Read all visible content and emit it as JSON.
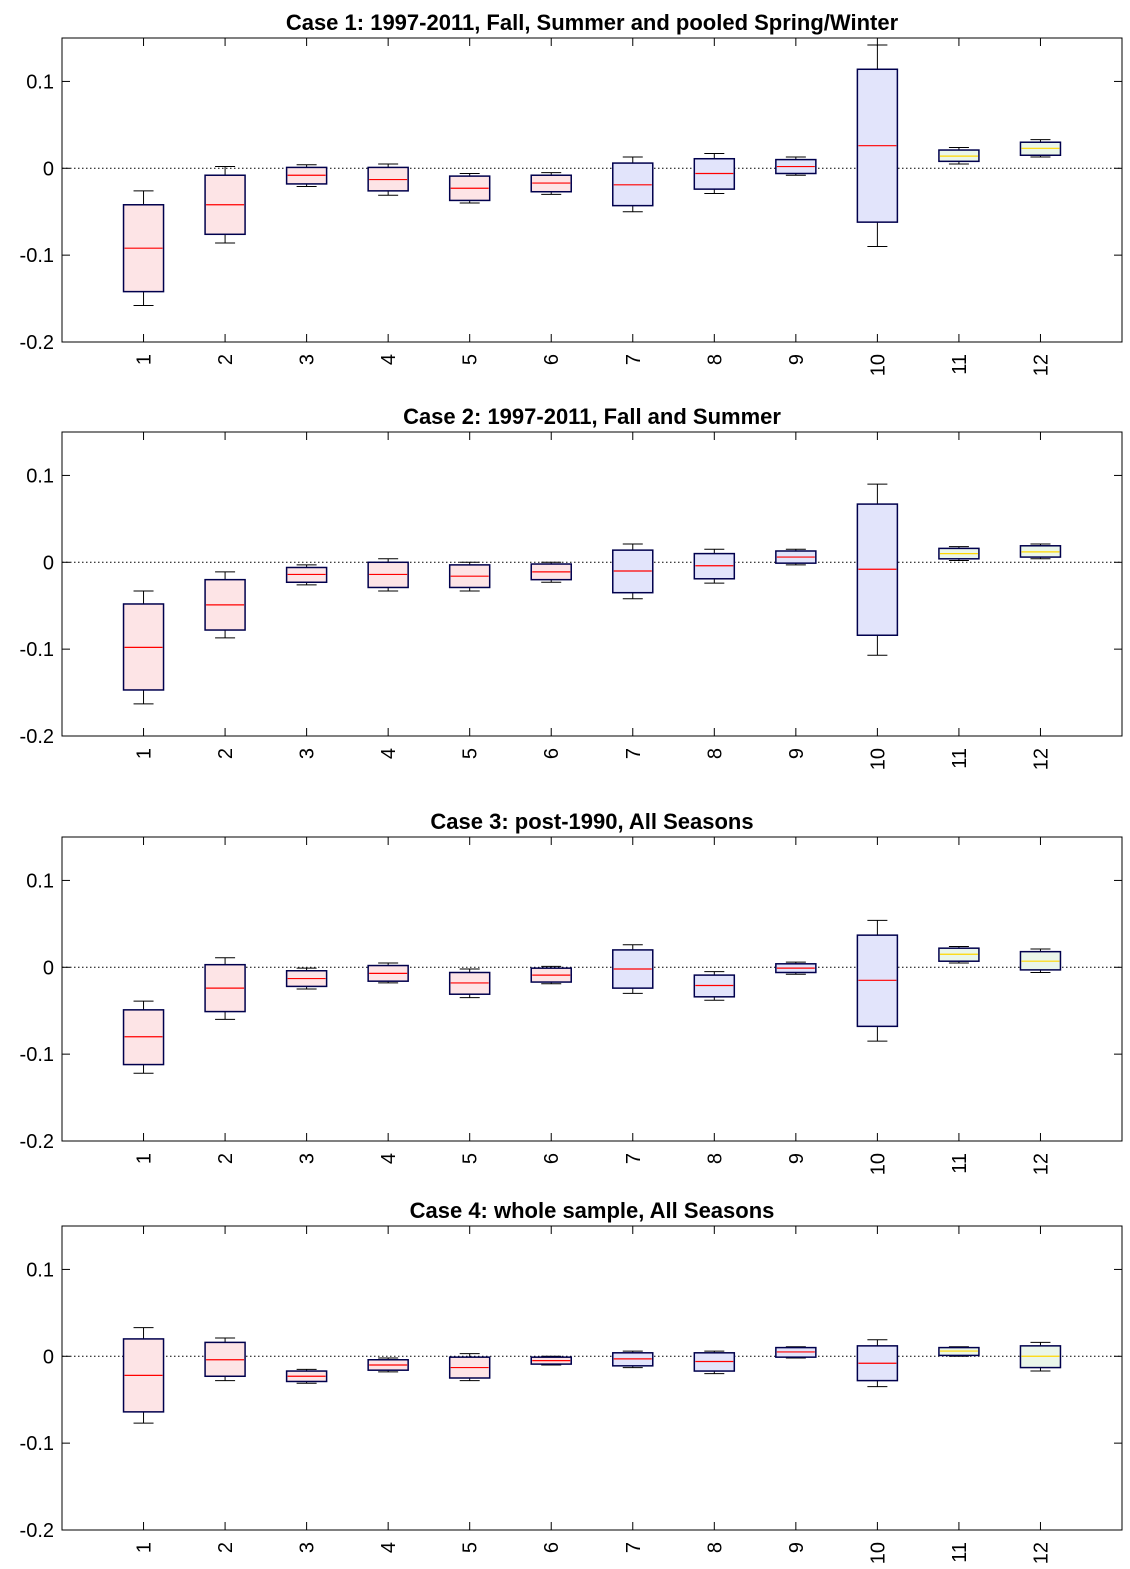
{
  "colors": {
    "red_box_fill": "#fde4e6",
    "blue_box_fill": "#e2e4fb",
    "green_box_fill": "#eaf6ea",
    "box_edge": "#00004d",
    "median": "#ff0000",
    "yellow_median": "#ffd700",
    "zero_line": "#000000"
  },
  "chart_data": [
    {
      "type": "box",
      "title": "Case 1: 1997-2011, Fall, Summer and pooled Spring/Winter",
      "ylim": [
        -0.2,
        0.15
      ],
      "yticks": [
        "0.1",
        "0",
        "-0.1",
        "-0.2"
      ],
      "categories": [
        "1",
        "2",
        "3",
        "4",
        "5",
        "6",
        "7",
        "8",
        "9",
        "10",
        "11",
        "12"
      ],
      "reference_line": 0,
      "boxes": [
        {
          "category": "1",
          "whisker_low": -0.158,
          "q1": -0.142,
          "median": -0.092,
          "q3": -0.042,
          "whisker_high": -0.026,
          "fill": "red"
        },
        {
          "category": "2",
          "whisker_low": -0.086,
          "q1": -0.076,
          "median": -0.042,
          "q3": -0.008,
          "whisker_high": 0.002,
          "fill": "red"
        },
        {
          "category": "3",
          "whisker_low": -0.021,
          "q1": -0.018,
          "median": -0.008,
          "q3": 0.001,
          "whisker_high": 0.004,
          "fill": "red"
        },
        {
          "category": "4",
          "whisker_low": -0.031,
          "q1": -0.026,
          "median": -0.013,
          "q3": 0.001,
          "whisker_high": 0.005,
          "fill": "red"
        },
        {
          "category": "5",
          "whisker_low": -0.04,
          "q1": -0.037,
          "median": -0.023,
          "q3": -0.009,
          "whisker_high": -0.006,
          "fill": "red"
        },
        {
          "category": "6",
          "whisker_low": -0.03,
          "q1": -0.027,
          "median": -0.017,
          "q3": -0.008,
          "whisker_high": -0.005,
          "fill": "red"
        },
        {
          "category": "7",
          "whisker_low": -0.05,
          "q1": -0.043,
          "median": -0.019,
          "q3": 0.006,
          "whisker_high": 0.013,
          "fill": "blue"
        },
        {
          "category": "8",
          "whisker_low": -0.029,
          "q1": -0.024,
          "median": -0.006,
          "q3": 0.011,
          "whisker_high": 0.017,
          "fill": "blue"
        },
        {
          "category": "9",
          "whisker_low": -0.008,
          "q1": -0.006,
          "median": 0.002,
          "q3": 0.01,
          "whisker_high": 0.013,
          "fill": "blue"
        },
        {
          "category": "10",
          "whisker_low": -0.09,
          "q1": -0.062,
          "median": 0.026,
          "q3": 0.114,
          "whisker_high": 0.142,
          "fill": "blue"
        },
        {
          "category": "11",
          "whisker_low": 0.005,
          "q1": 0.008,
          "median": 0.014,
          "q3": 0.021,
          "whisker_high": 0.024,
          "fill": "green"
        },
        {
          "category": "12",
          "whisker_low": 0.013,
          "q1": 0.015,
          "median": 0.023,
          "q3": 0.03,
          "whisker_high": 0.033,
          "fill": "green"
        }
      ]
    },
    {
      "type": "box",
      "title": "Case 2: 1997-2011, Fall and Summer",
      "ylim": [
        -0.2,
        0.15
      ],
      "yticks": [
        "0.1",
        "0",
        "-0.1",
        "-0.2"
      ],
      "categories": [
        "1",
        "2",
        "3",
        "4",
        "5",
        "6",
        "7",
        "8",
        "9",
        "10",
        "11",
        "12"
      ],
      "reference_line": 0,
      "boxes": [
        {
          "category": "1",
          "whisker_low": -0.163,
          "q1": -0.147,
          "median": -0.098,
          "q3": -0.048,
          "whisker_high": -0.033,
          "fill": "red"
        },
        {
          "category": "2",
          "whisker_low": -0.087,
          "q1": -0.078,
          "median": -0.049,
          "q3": -0.02,
          "whisker_high": -0.011,
          "fill": "red"
        },
        {
          "category": "3",
          "whisker_low": -0.026,
          "q1": -0.023,
          "median": -0.014,
          "q3": -0.006,
          "whisker_high": -0.003,
          "fill": "red"
        },
        {
          "category": "4",
          "whisker_low": -0.033,
          "q1": -0.029,
          "median": -0.014,
          "q3": 0.0,
          "whisker_high": 0.004,
          "fill": "red"
        },
        {
          "category": "5",
          "whisker_low": -0.033,
          "q1": -0.029,
          "median": -0.016,
          "q3": -0.003,
          "whisker_high": 0.0,
          "fill": "red"
        },
        {
          "category": "6",
          "whisker_low": -0.023,
          "q1": -0.02,
          "median": -0.011,
          "q3": -0.002,
          "whisker_high": 0.0,
          "fill": "red"
        },
        {
          "category": "7",
          "whisker_low": -0.042,
          "q1": -0.035,
          "median": -0.01,
          "q3": 0.014,
          "whisker_high": 0.021,
          "fill": "blue"
        },
        {
          "category": "8",
          "whisker_low": -0.024,
          "q1": -0.019,
          "median": -0.004,
          "q3": 0.01,
          "whisker_high": 0.015,
          "fill": "blue"
        },
        {
          "category": "9",
          "whisker_low": -0.003,
          "q1": -0.001,
          "median": 0.006,
          "q3": 0.013,
          "whisker_high": 0.015,
          "fill": "blue"
        },
        {
          "category": "10",
          "whisker_low": -0.107,
          "q1": -0.084,
          "median": -0.008,
          "q3": 0.067,
          "whisker_high": 0.09,
          "fill": "blue"
        },
        {
          "category": "11",
          "whisker_low": 0.002,
          "q1": 0.004,
          "median": 0.01,
          "q3": 0.016,
          "whisker_high": 0.018,
          "fill": "green"
        },
        {
          "category": "12",
          "whisker_low": 0.004,
          "q1": 0.006,
          "median": 0.012,
          "q3": 0.019,
          "whisker_high": 0.021,
          "fill": "green"
        }
      ]
    },
    {
      "type": "box",
      "title": "Case 3: post-1990, All Seasons",
      "ylim": [
        -0.2,
        0.15
      ],
      "yticks": [
        "0.1",
        "0",
        "-0.1",
        "-0.2"
      ],
      "categories": [
        "1",
        "2",
        "3",
        "4",
        "5",
        "6",
        "7",
        "8",
        "9",
        "10",
        "11",
        "12"
      ],
      "reference_line": 0,
      "boxes": [
        {
          "category": "1",
          "whisker_low": -0.122,
          "q1": -0.112,
          "median": -0.08,
          "q3": -0.049,
          "whisker_high": -0.039,
          "fill": "red"
        },
        {
          "category": "2",
          "whisker_low": -0.06,
          "q1": -0.051,
          "median": -0.024,
          "q3": 0.003,
          "whisker_high": 0.011,
          "fill": "red"
        },
        {
          "category": "3",
          "whisker_low": -0.025,
          "q1": -0.022,
          "median": -0.013,
          "q3": -0.004,
          "whisker_high": -0.001,
          "fill": "red"
        },
        {
          "category": "4",
          "whisker_low": -0.018,
          "q1": -0.016,
          "median": -0.007,
          "q3": 0.002,
          "whisker_high": 0.005,
          "fill": "red"
        },
        {
          "category": "5",
          "whisker_low": -0.035,
          "q1": -0.031,
          "median": -0.018,
          "q3": -0.006,
          "whisker_high": -0.002,
          "fill": "red"
        },
        {
          "category": "6",
          "whisker_low": -0.019,
          "q1": -0.017,
          "median": -0.009,
          "q3": -0.001,
          "whisker_high": 0.001,
          "fill": "red"
        },
        {
          "category": "7",
          "whisker_low": -0.03,
          "q1": -0.024,
          "median": -0.002,
          "q3": 0.02,
          "whisker_high": 0.026,
          "fill": "blue"
        },
        {
          "category": "8",
          "whisker_low": -0.038,
          "q1": -0.034,
          "median": -0.021,
          "q3": -0.009,
          "whisker_high": -0.005,
          "fill": "blue"
        },
        {
          "category": "9",
          "whisker_low": -0.008,
          "q1": -0.006,
          "median": -0.001,
          "q3": 0.004,
          "whisker_high": 0.006,
          "fill": "blue"
        },
        {
          "category": "10",
          "whisker_low": -0.085,
          "q1": -0.068,
          "median": -0.015,
          "q3": 0.037,
          "whisker_high": 0.054,
          "fill": "blue"
        },
        {
          "category": "11",
          "whisker_low": 0.005,
          "q1": 0.007,
          "median": 0.015,
          "q3": 0.022,
          "whisker_high": 0.024,
          "fill": "green"
        },
        {
          "category": "12",
          "whisker_low": -0.006,
          "q1": -0.003,
          "median": 0.007,
          "q3": 0.018,
          "whisker_high": 0.021,
          "fill": "green"
        }
      ]
    },
    {
      "type": "box",
      "title": "Case 4: whole sample, All Seasons",
      "ylim": [
        -0.2,
        0.15
      ],
      "yticks": [
        "0.1",
        "0",
        "-0.1",
        "-0.2"
      ],
      "categories": [
        "1",
        "2",
        "3",
        "4",
        "5",
        "6",
        "7",
        "8",
        "9",
        "10",
        "11",
        "12"
      ],
      "reference_line": 0,
      "boxes": [
        {
          "category": "1",
          "whisker_low": -0.077,
          "q1": -0.064,
          "median": -0.022,
          "q3": 0.02,
          "whisker_high": 0.033,
          "fill": "red"
        },
        {
          "category": "2",
          "whisker_low": -0.028,
          "q1": -0.023,
          "median": -0.004,
          "q3": 0.016,
          "whisker_high": 0.021,
          "fill": "red"
        },
        {
          "category": "3",
          "whisker_low": -0.031,
          "q1": -0.029,
          "median": -0.023,
          "q3": -0.017,
          "whisker_high": -0.015,
          "fill": "red"
        },
        {
          "category": "4",
          "whisker_low": -0.018,
          "q1": -0.016,
          "median": -0.01,
          "q3": -0.004,
          "whisker_high": -0.002,
          "fill": "red"
        },
        {
          "category": "5",
          "whisker_low": -0.028,
          "q1": -0.025,
          "median": -0.013,
          "q3": -0.001,
          "whisker_high": 0.003,
          "fill": "red"
        },
        {
          "category": "6",
          "whisker_low": -0.01,
          "q1": -0.009,
          "median": -0.005,
          "q3": -0.001,
          "whisker_high": 0.0,
          "fill": "red"
        },
        {
          "category": "7",
          "whisker_low": -0.013,
          "q1": -0.011,
          "median": -0.003,
          "q3": 0.004,
          "whisker_high": 0.006,
          "fill": "blue"
        },
        {
          "category": "8",
          "whisker_low": -0.02,
          "q1": -0.017,
          "median": -0.006,
          "q3": 0.004,
          "whisker_high": 0.006,
          "fill": "blue"
        },
        {
          "category": "9",
          "whisker_low": -0.002,
          "q1": -0.001,
          "median": 0.005,
          "q3": 0.01,
          "whisker_high": 0.011,
          "fill": "blue"
        },
        {
          "category": "10",
          "whisker_low": -0.035,
          "q1": -0.028,
          "median": -0.008,
          "q3": 0.012,
          "whisker_high": 0.019,
          "fill": "blue"
        },
        {
          "category": "11",
          "whisker_low": 0.0,
          "q1": 0.001,
          "median": 0.006,
          "q3": 0.01,
          "whisker_high": 0.011,
          "fill": "green"
        },
        {
          "category": "12",
          "whisker_low": -0.017,
          "q1": -0.013,
          "median": 0.0,
          "q3": 0.012,
          "whisker_high": 0.016,
          "fill": "green"
        }
      ]
    }
  ]
}
